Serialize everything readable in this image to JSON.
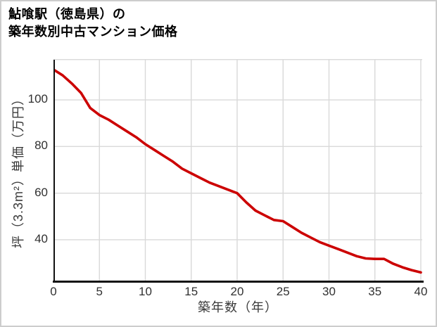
{
  "title": {
    "line1": "鮎喰駅（徳島県）の",
    "line2": "築年数別中古マンション価格"
  },
  "chart_data": {
    "type": "line",
    "title": "鮎喰駅（徳島県）の築年数別中古マンション価格",
    "xlabel": "築年数（年）",
    "ylabel": "坪（3.3m²）単価（万円）",
    "x": [
      0,
      1,
      2,
      3,
      4,
      5,
      6,
      7,
      8,
      9,
      10,
      11,
      12,
      13,
      14,
      15,
      16,
      17,
      18,
      19,
      20,
      21,
      22,
      23,
      24,
      25,
      26,
      27,
      28,
      29,
      30,
      31,
      32,
      33,
      34,
      35,
      36,
      37,
      38,
      39,
      40
    ],
    "values": [
      113,
      110.5,
      107,
      103,
      96.5,
      93.5,
      91.5,
      89,
      86.5,
      84,
      81,
      78.5,
      76,
      73.5,
      70.5,
      68.5,
      66.5,
      64.5,
      63,
      61.5,
      60,
      56,
      52.5,
      50.5,
      48.5,
      48,
      45.5,
      43,
      41,
      39,
      37.5,
      36,
      34.5,
      33,
      32,
      31.8,
      31.8,
      29.7,
      28.2,
      27,
      26
    ],
    "x_ticks": [
      0,
      5,
      10,
      15,
      20,
      25,
      30,
      35,
      40
    ],
    "y_ticks": [
      40,
      60,
      80,
      100
    ],
    "xlim": [
      0,
      40
    ],
    "ylim": [
      21.9,
      117.5
    ],
    "grid": true,
    "legend": false,
    "line_color": "#cc0000"
  },
  "colors": {
    "line": "#cc0000",
    "grid": "#d9d9d9",
    "axis": "#111111",
    "tick_text": "#303030",
    "label_text": "#3a3a3a",
    "title_text": "#000000",
    "background": "#ffffff",
    "border": "#cdcdcd"
  }
}
